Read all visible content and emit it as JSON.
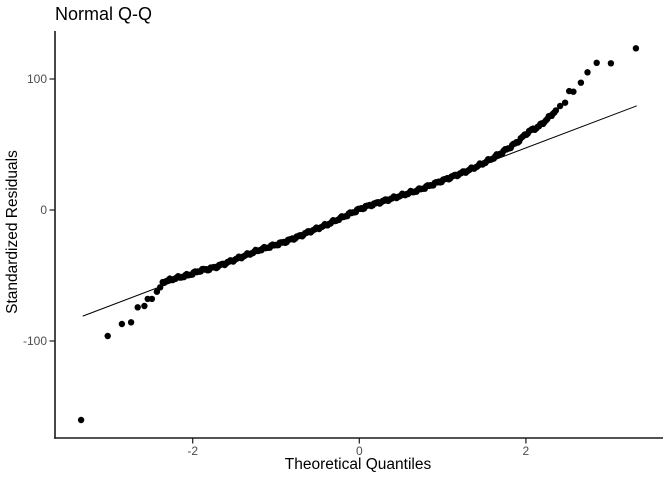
{
  "chart_data": {
    "type": "scatter",
    "title": "Normal Q-Q",
    "xlabel": "Theoretical Quantiles",
    "ylabel": "Standardized Residuals",
    "x_ticks": [
      -2,
      0,
      2
    ],
    "y_ticks": [
      -100,
      0,
      100
    ],
    "xlim": [
      -3.65,
      3.62
    ],
    "ylim": [
      -175,
      137
    ],
    "grid": false,
    "legend": false,
    "reference_line": {
      "x1": -3.32,
      "y1": -81,
      "x2": 3.33,
      "y2": 79.5
    },
    "band": {
      "description": "dense band of heavily overlapping sample points",
      "n_dots": 280,
      "path": [
        [
          -2.36,
          -55
        ],
        [
          -2.2,
          -52
        ],
        [
          -2.1,
          -50.5
        ],
        [
          -2.0,
          -48.5
        ],
        [
          -1.9,
          -46
        ],
        [
          -1.8,
          -45
        ],
        [
          -1.7,
          -43
        ],
        [
          -1.6,
          -40.5
        ],
        [
          -1.5,
          -38
        ],
        [
          -1.4,
          -35.5
        ],
        [
          -1.3,
          -33
        ],
        [
          -1.2,
          -30.5
        ],
        [
          -1.1,
          -28.5
        ],
        [
          -1.0,
          -26.5
        ],
        [
          -0.9,
          -24.5
        ],
        [
          -0.8,
          -22
        ],
        [
          -0.7,
          -19.5
        ],
        [
          -0.6,
          -16.5
        ],
        [
          -0.5,
          -14
        ],
        [
          -0.4,
          -11.5
        ],
        [
          -0.3,
          -8.5
        ],
        [
          -0.2,
          -5.5
        ],
        [
          -0.1,
          -2.5
        ],
        [
          0,
          0.5
        ],
        [
          0.1,
          3
        ],
        [
          0.2,
          5
        ],
        [
          0.3,
          7
        ],
        [
          0.4,
          9
        ],
        [
          0.5,
          11
        ],
        [
          0.6,
          13
        ],
        [
          0.7,
          15
        ],
        [
          0.8,
          17.5
        ],
        [
          0.9,
          20
        ],
        [
          1.0,
          22.5
        ],
        [
          1.1,
          25
        ],
        [
          1.2,
          27.5
        ],
        [
          1.3,
          30
        ],
        [
          1.4,
          33
        ],
        [
          1.5,
          36
        ],
        [
          1.6,
          39.5
        ],
        [
          1.7,
          43.5
        ],
        [
          1.8,
          47.5
        ],
        [
          1.9,
          52
        ],
        [
          2.0,
          58
        ],
        [
          2.05,
          60.5
        ],
        [
          2.15,
          63.5
        ],
        [
          2.25,
          69
        ],
        [
          2.36,
          76
        ]
      ]
    },
    "tail_points": [
      [
        -3.34,
        -160.3
      ],
      [
        -3.02,
        -96.2
      ],
      [
        -2.85,
        -87
      ],
      [
        -2.74,
        -85.7
      ],
      [
        -2.66,
        -74.3
      ],
      [
        -2.58,
        -73.3
      ],
      [
        -2.54,
        -67.9
      ],
      [
        -2.49,
        -67.9
      ],
      [
        -2.43,
        -62.4
      ],
      [
        -2.39,
        -59
      ],
      [
        2.41,
        79.4
      ],
      [
        2.47,
        81.9
      ],
      [
        2.52,
        90.8
      ],
      [
        2.57,
        90.3
      ],
      [
        2.66,
        97.2
      ],
      [
        2.74,
        105.1
      ],
      [
        2.85,
        112.4
      ],
      [
        3.02,
        112
      ],
      [
        3.32,
        123.4
      ]
    ],
    "style": {
      "point_color": "#000000",
      "line_color": "#000000",
      "axis_color": "#1a1a1a",
      "tick_label_color": "#4d4d4d",
      "title_color": "#000000",
      "background": "#ffffff",
      "point_radius": 3.2
    }
  }
}
